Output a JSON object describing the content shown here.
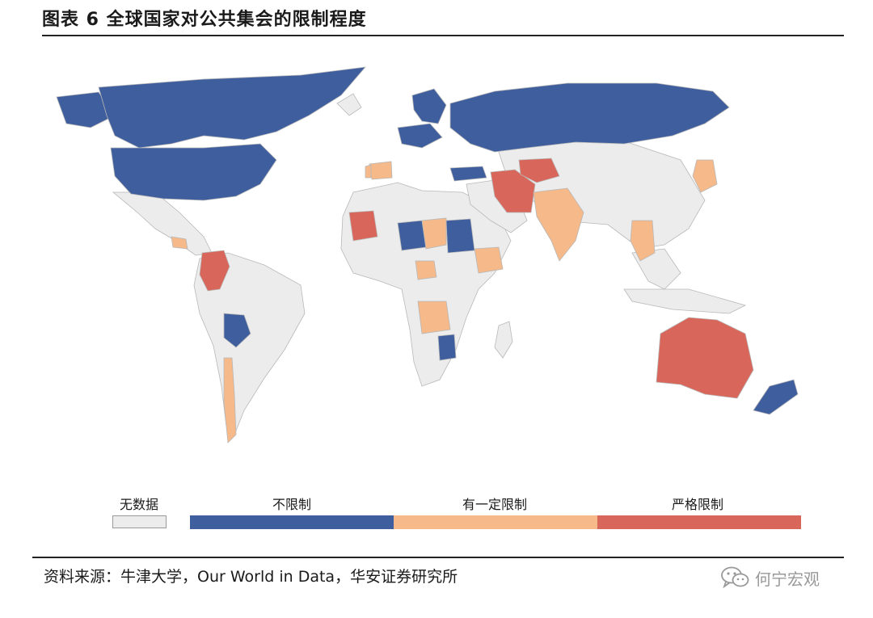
{
  "header": {
    "title": "图表 6 全球国家对公共集会的限制程度"
  },
  "legend": {
    "nodata_label": "无数据",
    "none_label": "不限制",
    "some_label": "有一定限制",
    "severe_label": "严格限制"
  },
  "colors": {
    "nodata": "#ececec",
    "none": "#3f5e9e",
    "some": "#f5b98a",
    "severe": "#d9665a",
    "border": "#b8b8b8"
  },
  "footer": {
    "source": "资料来源：牛津大学，Our World in Data，华安证券研究所",
    "watermark": "何宁宏观"
  }
}
